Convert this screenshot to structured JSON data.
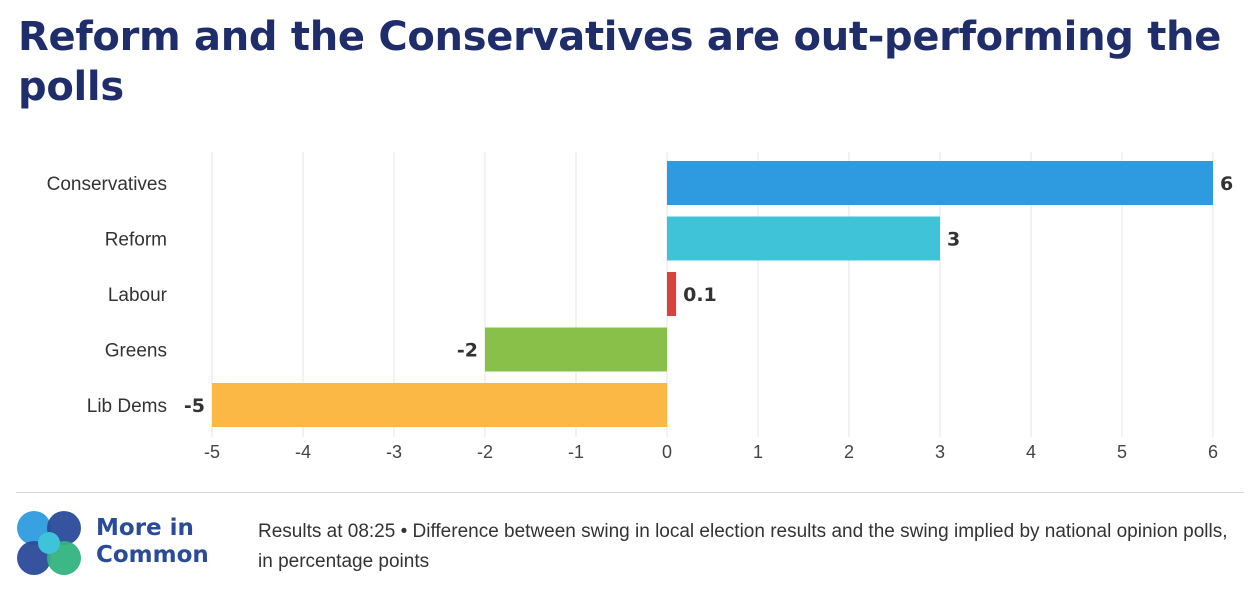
{
  "title": "Reform and the Conservatives are out-performing the polls",
  "chart_data": {
    "type": "bar",
    "orientation": "horizontal",
    "categories": [
      "Conservatives",
      "Reform",
      "Labour",
      "Greens",
      "Lib Dems"
    ],
    "values": [
      6,
      3,
      0.1,
      -2,
      -5
    ],
    "value_labels": [
      "6",
      "3",
      "0.1",
      "-2",
      "-5"
    ],
    "colors": [
      "#2e9be0",
      "#3fc3d9",
      "#d9423d",
      "#88c04a",
      "#fbb845"
    ],
    "xlim": [
      -5,
      6
    ],
    "xticks": [
      -5,
      -4,
      -3,
      -2,
      -1,
      0,
      1,
      2,
      3,
      4,
      5,
      6
    ],
    "xtick_labels": [
      "-5",
      "-4",
      "-3",
      "-2",
      "-1",
      "0",
      "1",
      "2",
      "3",
      "4",
      "5",
      "6"
    ],
    "grid": "vertical",
    "legend": "none"
  },
  "branding": {
    "logo_icon": "more-in-common-logo",
    "name_line1": "More in",
    "name_line2": "Common",
    "logo_colors": [
      "#2e9be0",
      "#2a4a9a",
      "#3fc3d9",
      "#33b380"
    ]
  },
  "footnote": "Results at 08:25 • Difference between swing in local election results and the swing implied by national opinion polls, in percentage points"
}
